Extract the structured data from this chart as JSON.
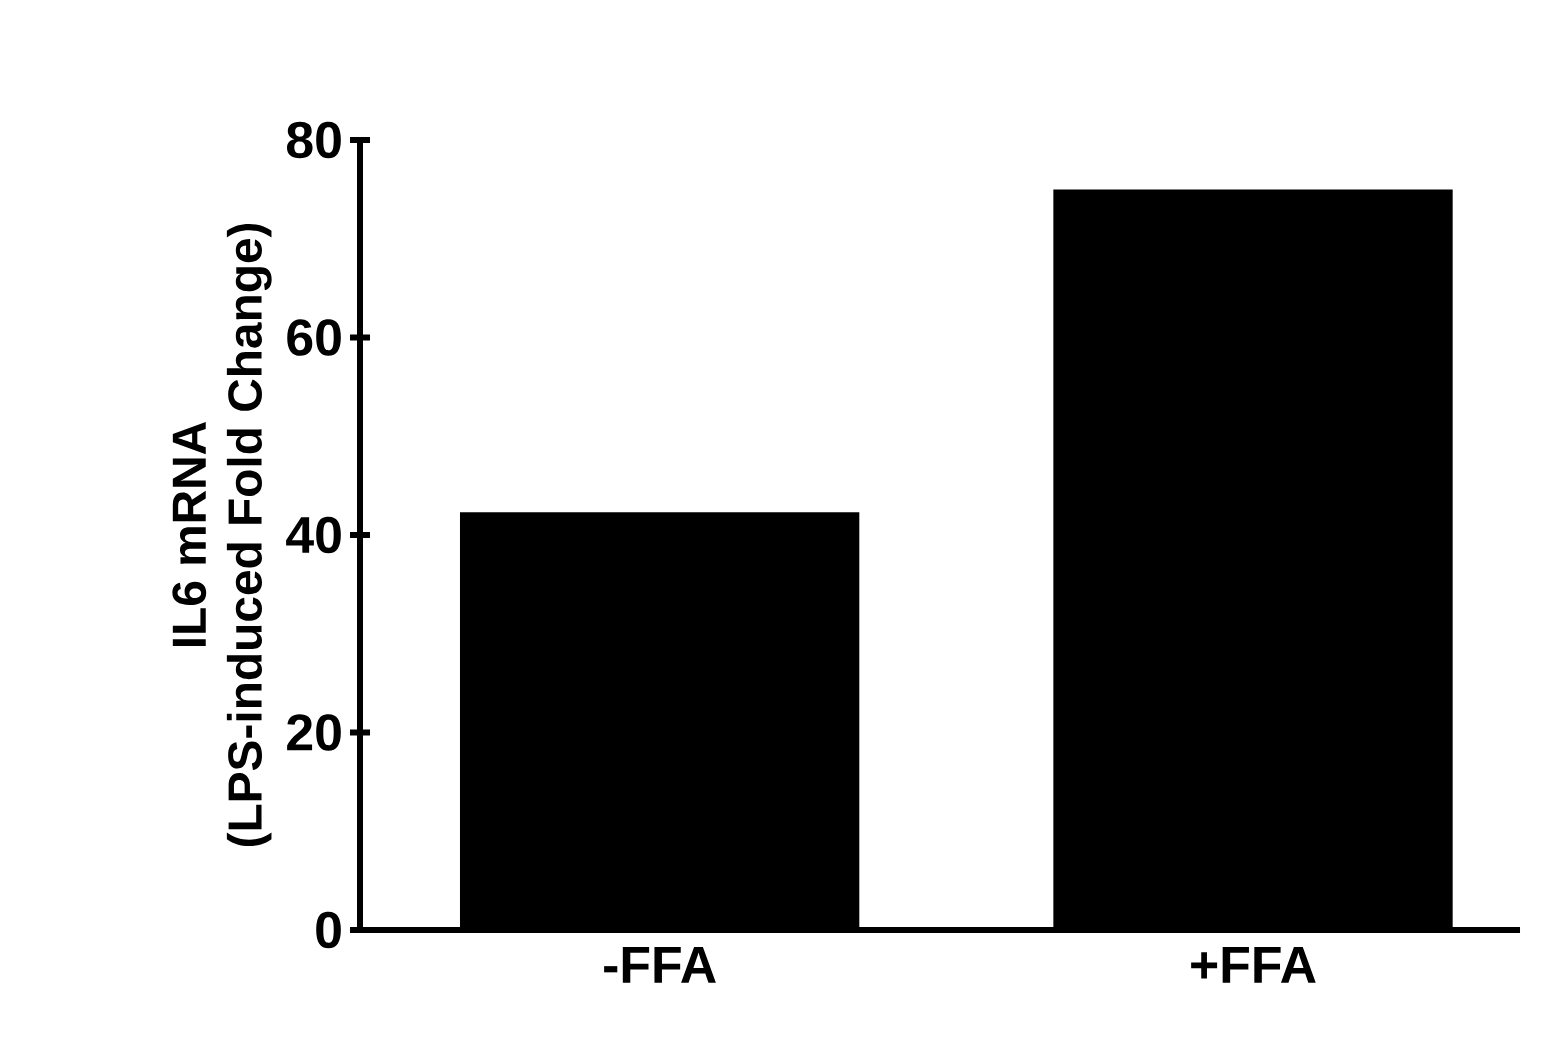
{
  "chart_data": {
    "type": "bar",
    "ylabel": "IL6 mRNA\n(LPS-induced Fold Change)",
    "categories": [
      "-FFA",
      "+FFA"
    ],
    "values": [
      42.3,
      75
    ],
    "color": "#000000",
    "ylim": [
      0,
      80
    ],
    "yticks": [
      0,
      20,
      40,
      60,
      80
    ],
    "grid": false
  }
}
